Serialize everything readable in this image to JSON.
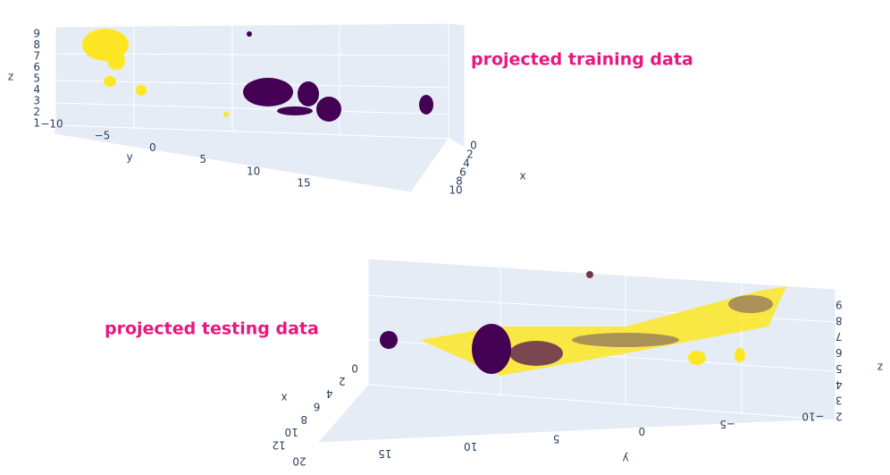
{
  "chart_data": [
    {
      "type": "scatter3d",
      "title": "projected training data",
      "x_label": "x",
      "y_label": "y",
      "z_label": "z",
      "xticks": [
        0,
        2,
        4,
        6,
        8,
        10
      ],
      "yticks": [
        {
          "value": -10,
          "label": "−10"
        },
        {
          "value": -5,
          "label": "−5"
        },
        0,
        5,
        10,
        15
      ],
      "zticks": [
        1,
        2,
        3,
        4,
        5,
        6,
        7,
        8,
        9
      ]
    },
    {
      "type": "scatter3d",
      "title": "projected testing data",
      "x_label": "x",
      "y_label": "y",
      "z_label": "z",
      "xticks": [
        0,
        2,
        4,
        6,
        8,
        10,
        12
      ],
      "yticks": [
        {
          "value": -10,
          "label": "−10"
        },
        {
          "value": -5,
          "label": "−5"
        },
        0,
        5,
        10,
        15,
        20
      ],
      "zticks": [
        2,
        3,
        4,
        5,
        6,
        7,
        8,
        9
      ]
    }
  ]
}
